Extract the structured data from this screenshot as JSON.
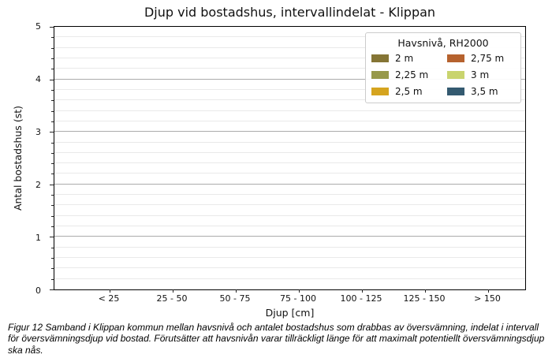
{
  "chart": {
    "title": "Djup vid bostadshus, intervallindelat - Klippan",
    "y_axis": {
      "label": "Antal bostadshus (st)",
      "ticks": [
        "0",
        "1",
        "2",
        "3",
        "4",
        "5"
      ]
    },
    "x_axis": {
      "label": "Djup [cm]",
      "categories": [
        "< 25",
        "25 - 50",
        "50 - 75",
        "75 - 100",
        "100 - 125",
        "125 - 150",
        "> 150"
      ]
    },
    "legend": {
      "title": "Havsnivå, RH2000",
      "entries": [
        {
          "label": "2 m",
          "color": "#857535"
        },
        {
          "label": "2,25 m",
          "color": "#97994a"
        },
        {
          "label": "2,5 m",
          "color": "#d5a41f"
        },
        {
          "label": "2,75 m",
          "color": "#b6622e"
        },
        {
          "label": "3 m",
          "color": "#c9d46e"
        },
        {
          "label": "3,5 m",
          "color": "#345a70"
        }
      ]
    }
  },
  "caption": "Figur 12 Samband i Klippan kommun mellan havsnivå och antalet bostadshus som drabbas av översvämning, indelat i intervall för översvämningsdjup vid bostad. Förutsätter att havsnivån varar tillräckligt länge för att maximalt potentiellt översvämningsdjup ska nås.",
  "chart_data": {
    "type": "bar",
    "title": "Djup vid bostadshus, intervallindelat - Klippan",
    "categories": [
      "< 25",
      "25 - 50",
      "50 - 75",
      "75 - 100",
      "100 - 125",
      "125 - 150",
      "> 150"
    ],
    "series": [
      {
        "name": "2 m",
        "color": "#857535",
        "values": [
          0,
          0,
          0,
          0,
          0,
          0,
          0
        ]
      },
      {
        "name": "2,25 m",
        "color": "#97994a",
        "values": [
          0,
          0,
          0,
          0,
          0,
          0,
          0
        ]
      },
      {
        "name": "2,5 m",
        "color": "#d5a41f",
        "values": [
          0,
          0,
          0,
          0,
          0,
          0,
          0
        ]
      },
      {
        "name": "2,75 m",
        "color": "#b6622e",
        "values": [
          0,
          0,
          0,
          0,
          0,
          0,
          0
        ]
      },
      {
        "name": "3 m",
        "color": "#c9d46e",
        "values": [
          0,
          0,
          0,
          0,
          0,
          0,
          0
        ]
      },
      {
        "name": "3,5 m",
        "color": "#345a70",
        "values": [
          0,
          0,
          0,
          0,
          0,
          0,
          0
        ]
      }
    ],
    "xlabel": "Djup [cm]",
    "ylabel": "Antal bostadshus (st)",
    "ylim": [
      0,
      5
    ],
    "yticks": [
      0,
      1,
      2,
      3,
      4,
      5
    ],
    "minor_ytick_step": 0.2,
    "grid": "horizontal, major and minor gridlines",
    "legend_title": "Havsnivå, RH2000",
    "legend_position": "upper right"
  }
}
